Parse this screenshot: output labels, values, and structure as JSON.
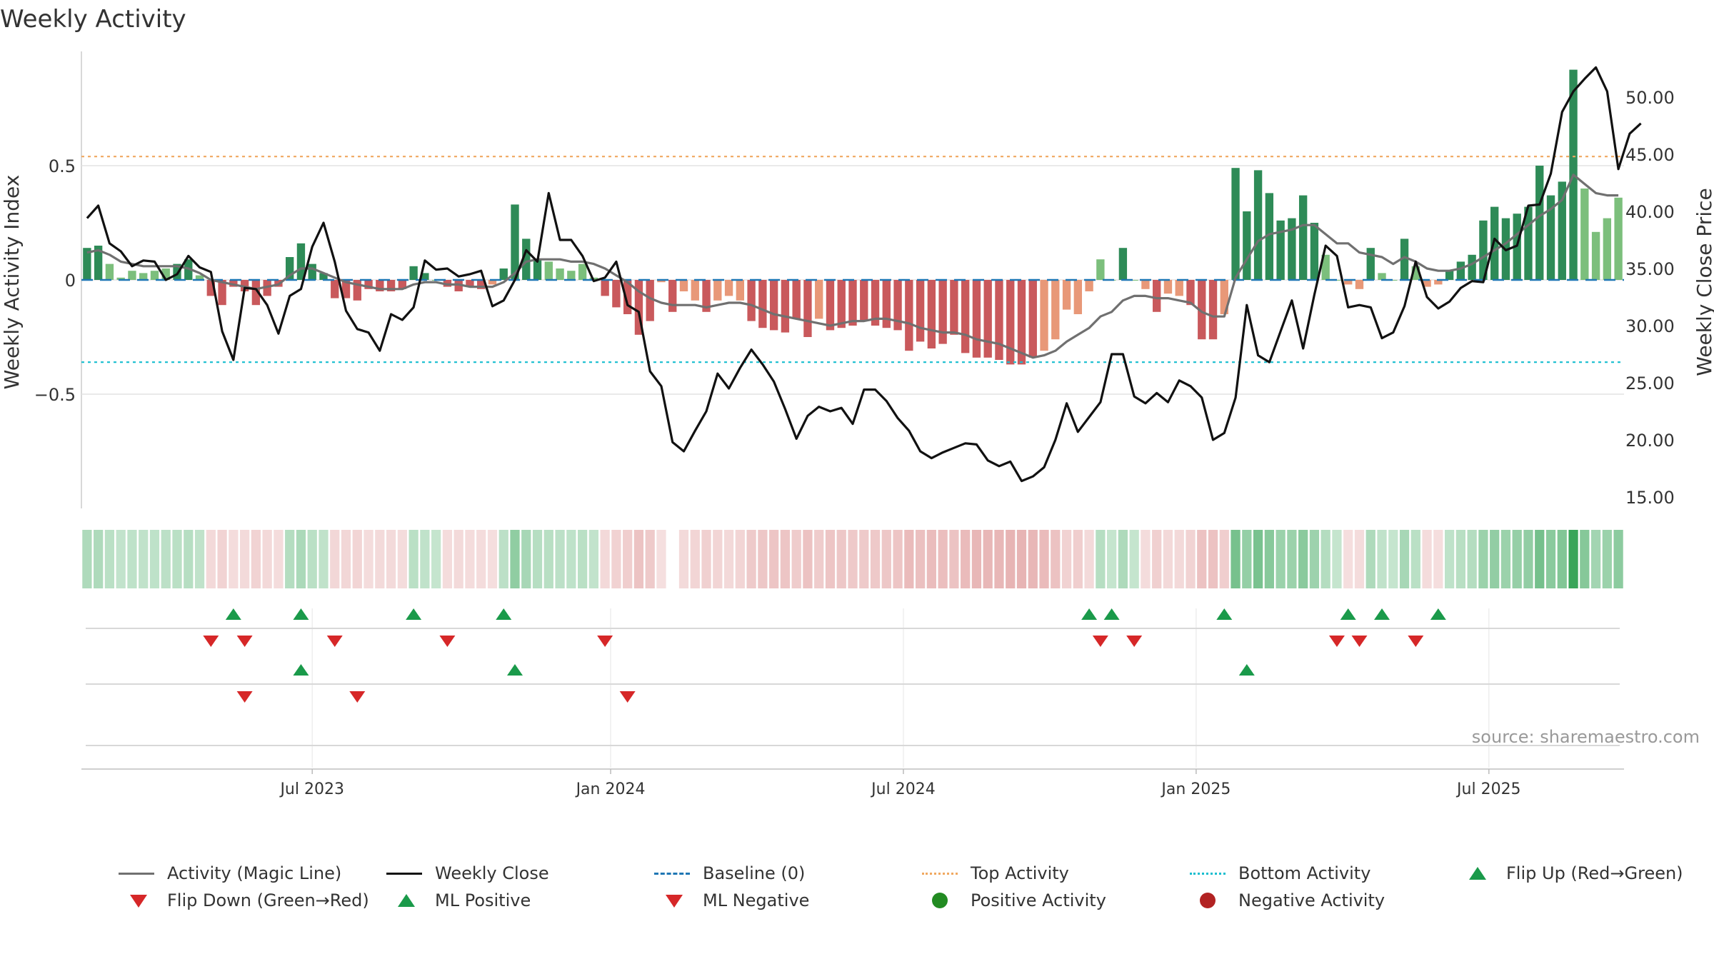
{
  "chart_data": {
    "type": "bar",
    "title": "Weekly Activity",
    "ylabel_left": "Weekly Activity Index",
    "ylabel_right": "Weekly Close Price",
    "source": "source: sharemaestro.com",
    "left_axis": {
      "ylim": [
        -1.0,
        1.0
      ],
      "ticks": [
        {
          "v": 0.5,
          "label": "0.5"
        },
        {
          "v": 0,
          "label": "0"
        },
        {
          "v": -0.5,
          "label": "−0.5"
        }
      ]
    },
    "right_axis": {
      "ylim": [
        14.0,
        54.0
      ],
      "ticks": [
        {
          "v": 50,
          "label": "50.00"
        },
        {
          "v": 45,
          "label": "45.00"
        },
        {
          "v": 40,
          "label": "40.00"
        },
        {
          "v": 35,
          "label": "35.00"
        },
        {
          "v": 30,
          "label": "30.00"
        },
        {
          "v": 25,
          "label": "25.00"
        },
        {
          "v": 20,
          "label": "20.00"
        },
        {
          "v": 15,
          "label": "15.00"
        }
      ]
    },
    "x_index_range": [
      -0.5,
      136.5
    ],
    "x_ticks": [
      {
        "i": 20,
        "label": "Jul 2023"
      },
      {
        "i": 46.5,
        "label": "Jan 2024"
      },
      {
        "i": 72.5,
        "label": "Jul 2024"
      },
      {
        "i": 98.5,
        "label": "Jan 2025"
      },
      {
        "i": 124.5,
        "label": "Jul 2025"
      }
    ],
    "top_activity": 0.54,
    "bottom_activity": -0.36,
    "baseline": 0,
    "activity": [
      0.14,
      0.15,
      0.07,
      0.01,
      0.04,
      0.03,
      0.04,
      0.05,
      0.07,
      0.09,
      0.02,
      -0.07,
      -0.11,
      -0.03,
      -0.05,
      -0.11,
      -0.07,
      -0.03,
      0.1,
      0.16,
      0.07,
      0.03,
      -0.08,
      -0.08,
      -0.09,
      -0.04,
      -0.05,
      -0.05,
      -0.04,
      0.06,
      0.03,
      0.0,
      -0.03,
      -0.05,
      -0.03,
      -0.04,
      -0.02,
      0.05,
      0.33,
      0.18,
      0.09,
      0.08,
      0.05,
      0.04,
      0.07,
      0.01,
      -0.07,
      -0.12,
      -0.15,
      -0.24,
      -0.18,
      -0.01,
      -0.14,
      -0.05,
      -0.09,
      -0.14,
      -0.09,
      -0.07,
      -0.09,
      -0.18,
      -0.21,
      -0.22,
      -0.23,
      -0.17,
      -0.25,
      -0.17,
      -0.22,
      -0.21,
      -0.2,
      -0.18,
      -0.2,
      -0.21,
      -0.22,
      -0.31,
      -0.27,
      -0.3,
      -0.28,
      -0.24,
      -0.32,
      -0.34,
      -0.34,
      -0.35,
      -0.37,
      -0.37,
      -0.34,
      -0.31,
      -0.26,
      -0.13,
      -0.15,
      -0.05,
      0.09,
      0.0,
      0.14,
      0.0,
      -0.04,
      -0.14,
      -0.06,
      -0.07,
      -0.11,
      -0.26,
      -0.26,
      -0.15,
      0.49,
      0.3,
      0.48,
      0.38,
      0.26,
      0.27,
      0.37,
      0.25,
      0.11,
      0.0,
      -0.02,
      -0.04,
      0.14,
      0.03,
      0.0,
      0.18,
      0.06,
      -0.03,
      -0.02,
      0.04,
      0.08,
      0.11,
      0.26,
      0.32,
      0.27,
      0.29,
      0.32,
      0.5,
      0.37,
      0.43,
      0.92,
      0.4,
      0.21,
      0.27,
      0.36
    ],
    "magic_line": [
      0.12,
      0.13,
      0.11,
      0.08,
      0.07,
      0.06,
      0.06,
      0.06,
      0.06,
      0.05,
      0.03,
      0.0,
      -0.01,
      -0.02,
      -0.03,
      -0.04,
      -0.03,
      -0.02,
      0.02,
      0.05,
      0.05,
      0.03,
      0.01,
      -0.01,
      -0.02,
      -0.03,
      -0.04,
      -0.04,
      -0.04,
      -0.02,
      -0.01,
      -0.01,
      -0.02,
      -0.02,
      -0.03,
      -0.03,
      -0.03,
      -0.01,
      0.03,
      0.08,
      0.09,
      0.09,
      0.09,
      0.08,
      0.08,
      0.07,
      0.05,
      0.02,
      -0.01,
      -0.05,
      -0.08,
      -0.1,
      -0.11,
      -0.11,
      -0.11,
      -0.12,
      -0.11,
      -0.1,
      -0.1,
      -0.11,
      -0.13,
      -0.15,
      -0.16,
      -0.17,
      -0.18,
      -0.19,
      -0.2,
      -0.19,
      -0.18,
      -0.18,
      -0.17,
      -0.17,
      -0.18,
      -0.19,
      -0.21,
      -0.22,
      -0.23,
      -0.23,
      -0.24,
      -0.26,
      -0.27,
      -0.28,
      -0.3,
      -0.32,
      -0.34,
      -0.33,
      -0.31,
      -0.27,
      -0.24,
      -0.21,
      -0.16,
      -0.14,
      -0.09,
      -0.07,
      -0.07,
      -0.08,
      -0.08,
      -0.09,
      -0.1,
      -0.14,
      -0.16,
      -0.16,
      0.01,
      0.09,
      0.17,
      0.2,
      0.21,
      0.22,
      0.24,
      0.24,
      0.2,
      0.16,
      0.16,
      0.12,
      0.11,
      0.1,
      0.07,
      0.1,
      0.08,
      0.05,
      0.04,
      0.04,
      0.05,
      0.07,
      0.1,
      0.13,
      0.16,
      0.2,
      0.24,
      0.28,
      0.31,
      0.35,
      0.46,
      0.42,
      0.38,
      0.37,
      0.37
    ],
    "weekly_close": [
      39.4,
      40.5,
      37.2,
      36.5,
      35.2,
      35.7,
      35.6,
      34.0,
      34.5,
      36.1,
      35.1,
      34.7,
      29.5,
      27.0,
      33.3,
      33.2,
      31.8,
      29.3,
      32.6,
      33.2,
      36.9,
      39.0,
      35.6,
      31.3,
      29.7,
      29.4,
      27.8,
      31.0,
      30.5,
      31.6,
      35.7,
      34.9,
      35.0,
      34.3,
      34.5,
      34.8,
      31.7,
      32.2,
      34.0,
      36.6,
      35.6,
      41.6,
      37.5,
      37.5,
      36.1,
      33.9,
      34.2,
      35.6,
      31.8,
      31.2,
      26.0,
      24.7,
      19.8,
      19.0,
      20.8,
      22.5,
      25.8,
      24.5,
      26.3,
      27.9,
      26.6,
      25.1,
      22.7,
      20.1,
      22.1,
      22.9,
      22.5,
      22.8,
      21.4,
      24.4,
      24.4,
      23.4,
      21.9,
      20.8,
      19.0,
      18.4,
      18.9,
      19.3,
      19.7,
      19.6,
      18.2,
      17.7,
      18.1,
      16.4,
      16.8,
      17.6,
      20.0,
      23.2,
      20.7,
      22.0,
      23.3,
      27.5,
      27.5,
      23.8,
      23.2,
      24.1,
      23.3,
      25.2,
      24.7,
      23.7,
      20.0,
      20.6,
      23.7,
      31.8,
      27.4,
      26.8,
      29.5,
      32.2,
      28.0,
      32.7,
      37.0,
      36.1,
      31.6,
      31.8,
      31.6,
      28.9,
      29.4,
      31.7,
      35.6,
      32.5,
      31.5,
      32.1,
      33.3,
      33.9,
      33.8,
      37.6,
      36.6,
      37.0,
      40.5,
      40.6,
      43.3,
      48.7,
      50.5,
      51.6,
      52.6,
      50.5,
      43.7,
      46.8,
      47.7
    ],
    "heat_strip_gaps": [
      52
    ],
    "signal_rows": [
      {
        "up": [
          13,
          19,
          29,
          37,
          89,
          91,
          101,
          112,
          115,
          120
        ],
        "down": [
          11,
          14,
          22,
          32,
          46,
          90,
          93,
          111,
          113,
          118
        ]
      },
      {
        "up": [
          19,
          38,
          103
        ],
        "down": [
          14,
          24,
          48
        ]
      },
      {
        "up": [],
        "down": []
      }
    ],
    "colors": {
      "pos_strong": "#2e8b57",
      "pos_weak": "#7cbf7c",
      "neg_strong": "#c9595c",
      "neg_weak": "#e89878",
      "magic_line": "#707070",
      "close": "#111111",
      "baseline": "#1f77b4",
      "top": "#f0a860",
      "bottom": "#17becf",
      "flip_up": "#1a9a4a",
      "flip_down": "#d62728",
      "pos_dot": "#228b22",
      "neg_dot": "#b22222"
    }
  },
  "legend": [
    {
      "label": "Activity (Magic Line)",
      "icon": "solid-line",
      "color": "#707070"
    },
    {
      "label": "Weekly Close",
      "icon": "solid-line",
      "color": "#111111"
    },
    {
      "label": "Baseline (0)",
      "icon": "dashed-line",
      "color": "#1f77b4"
    },
    {
      "label": "Top Activity",
      "icon": "dotted-line",
      "color": "#f0a860"
    },
    {
      "label": "Bottom Activity",
      "icon": "dotted-line",
      "color": "#17becf"
    },
    {
      "label": "Flip Up (Red→Green)",
      "icon": "triangle-up",
      "color": "#1a9a4a"
    },
    {
      "label": "Flip Down (Green→Red)",
      "icon": "triangle-down",
      "color": "#d62728"
    },
    {
      "label": "ML Positive",
      "icon": "triangle-up",
      "color": "#1a9a4a"
    },
    {
      "label": "ML Negative",
      "icon": "triangle-down",
      "color": "#d62728"
    },
    {
      "label": "Positive Activity",
      "icon": "dot",
      "color": "#228b22"
    },
    {
      "label": "Negative Activity",
      "icon": "dot",
      "color": "#b22222"
    }
  ]
}
